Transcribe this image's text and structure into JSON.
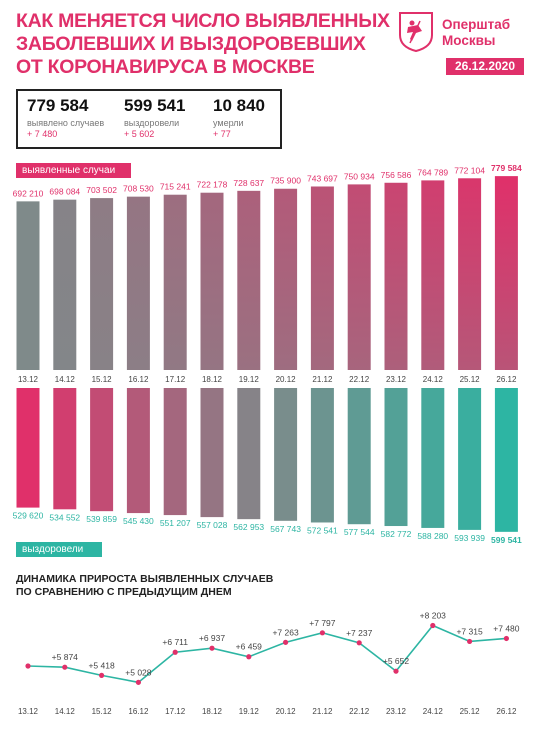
{
  "header": {
    "title_lines": [
      "КАК МЕНЯЕТСЯ ЧИСЛО ВЫЯВЛЕННЫХ",
      "ЗАБОЛЕВШИХ И ВЫЗДОРОВЕВШИХ",
      "ОТ КОРОНАВИРУСА В МОСКВЕ"
    ],
    "brand_line1": "Оперштаб",
    "brand_line2": "Москвы",
    "date": "26.12.2020"
  },
  "summary": {
    "cases": {
      "value": "779 584",
      "label": "выявлено случаев",
      "delta": "+ 7 480"
    },
    "recovered": {
      "value": "599 541",
      "label": "выздоровели",
      "delta": "+ 5 602"
    },
    "deaths": {
      "value": "10 840",
      "label": "умерли",
      "delta": "+ 77"
    }
  },
  "labels": {
    "cases_tag": "выявленные случаи",
    "recovered_tag": "выздоровели",
    "dynamics_line1": "ДИНАМИКА ПРИРОСТА ВЫЯВЛЕННЫХ СЛУЧАЕВ",
    "dynamics_line2": "ПО СРАВНЕНИЮ С ПРЕДЫДУЩИМ ДНЕМ"
  },
  "colors": {
    "pink": "#e0306a",
    "teal": "#2db5a3",
    "grey": "#7f8a8a"
  },
  "chart_data": [
    {
      "type": "bar",
      "categories": [
        "13.12",
        "14.12",
        "15.12",
        "16.12",
        "17.12",
        "18.12",
        "19.12",
        "20.12",
        "21.12",
        "22.12",
        "23.12",
        "24.12",
        "25.12",
        "26.12"
      ],
      "series": [
        {
          "name": "выявленные случаи",
          "values": [
            692210,
            698084,
            703502,
            708530,
            715241,
            722178,
            728637,
            735900,
            743697,
            750934,
            756586,
            764789,
            772104,
            779584
          ]
        }
      ],
      "value_labels": [
        "692 210",
        "698 084",
        "703 502",
        "708 530",
        "715 241",
        "722 178",
        "728 637",
        "735 900",
        "743 697",
        "750 934",
        "756 586",
        "764 789",
        "772 104",
        "779 584"
      ]
    },
    {
      "type": "bar",
      "categories": [
        "13.12",
        "14.12",
        "15.12",
        "16.12",
        "17.12",
        "18.12",
        "19.12",
        "20.12",
        "21.12",
        "22.12",
        "23.12",
        "24.12",
        "25.12",
        "26.12"
      ],
      "series": [
        {
          "name": "выздоровели",
          "values": [
            529620,
            534552,
            539859,
            545430,
            551207,
            557028,
            562953,
            567743,
            572541,
            577544,
            582772,
            588280,
            593939,
            599541
          ]
        }
      ],
      "value_labels": [
        "529 620",
        "534 552",
        "539 859",
        "545 430",
        "551 207",
        "557 028",
        "562 953",
        "567 743",
        "572 541",
        "577 544",
        "582 772",
        "588 280",
        "593 939",
        "599 541"
      ]
    },
    {
      "type": "line",
      "title": "ДИНАМИКА ПРИРОСТА ВЫЯВЛЕННЫХ СЛУЧАЕВ ПО СРАВНЕНИЮ С ПРЕДЫДУЩИМ ДНЕМ",
      "categories": [
        "13.12",
        "14.12",
        "15.12",
        "16.12",
        "17.12",
        "18.12",
        "19.12",
        "20.12",
        "21.12",
        "22.12",
        "23.12",
        "24.12",
        "25.12",
        "26.12"
      ],
      "series": [
        {
          "values": [
            null,
            5874,
            5418,
            5028,
            6711,
            6937,
            6459,
            7263,
            7797,
            7237,
            5652,
            8203,
            7315,
            7480
          ]
        }
      ],
      "point_labels": [
        "",
        "+5 874",
        "+5 418",
        "+5 028",
        "+6 711",
        "+6 937",
        "+6 459",
        "+7 263",
        "+7 797",
        "+7 237",
        "+5 652",
        "+8 203",
        "+7 315",
        "+7 480"
      ]
    }
  ]
}
